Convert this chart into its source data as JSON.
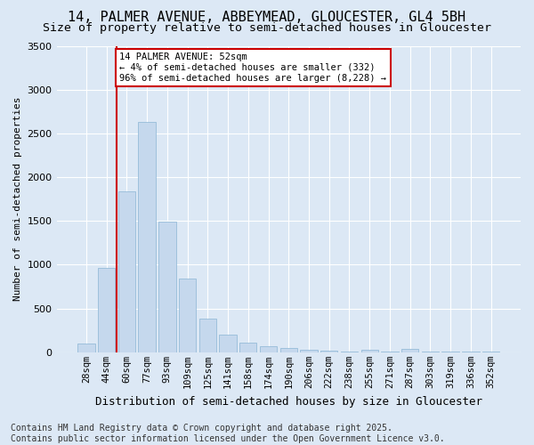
{
  "title": "14, PALMER AVENUE, ABBEYMEAD, GLOUCESTER, GL4 5BH",
  "subtitle": "Size of property relative to semi-detached houses in Gloucester",
  "xlabel": "Distribution of semi-detached houses by size in Gloucester",
  "ylabel": "Number of semi-detached properties",
  "categories": [
    "28sqm",
    "44sqm",
    "60sqm",
    "77sqm",
    "93sqm",
    "109sqm",
    "125sqm",
    "141sqm",
    "158sqm",
    "174sqm",
    "190sqm",
    "206sqm",
    "222sqm",
    "238sqm",
    "255sqm",
    "271sqm",
    "287sqm",
    "303sqm",
    "319sqm",
    "336sqm",
    "352sqm"
  ],
  "values": [
    100,
    960,
    1840,
    2630,
    1490,
    840,
    390,
    200,
    110,
    65,
    45,
    30,
    15,
    10,
    30,
    8,
    35,
    8,
    8,
    8,
    8
  ],
  "bar_color": "#c5d8ed",
  "bar_edge_color": "#8ab4d4",
  "background_color": "#dce8f5",
  "grid_color": "#ffffff",
  "vline_x_index": 1,
  "vline_color": "#cc0000",
  "annotation_text": "14 PALMER AVENUE: 52sqm\n← 4% of semi-detached houses are smaller (332)\n96% of semi-detached houses are larger (8,228) →",
  "annotation_box_color": "#ffffff",
  "annotation_edge_color": "#cc0000",
  "ylim": [
    0,
    3500
  ],
  "yticks": [
    0,
    500,
    1000,
    1500,
    2000,
    2500,
    3000,
    3500
  ],
  "footer_line1": "Contains HM Land Registry data © Crown copyright and database right 2025.",
  "footer_line2": "Contains public sector information licensed under the Open Government Licence v3.0.",
  "title_fontsize": 11,
  "subtitle_fontsize": 9.5,
  "ylabel_fontsize": 8,
  "xlabel_fontsize": 9,
  "tick_fontsize": 7.5,
  "ytick_fontsize": 8,
  "footer_fontsize": 7,
  "annotation_fontsize": 7.5
}
